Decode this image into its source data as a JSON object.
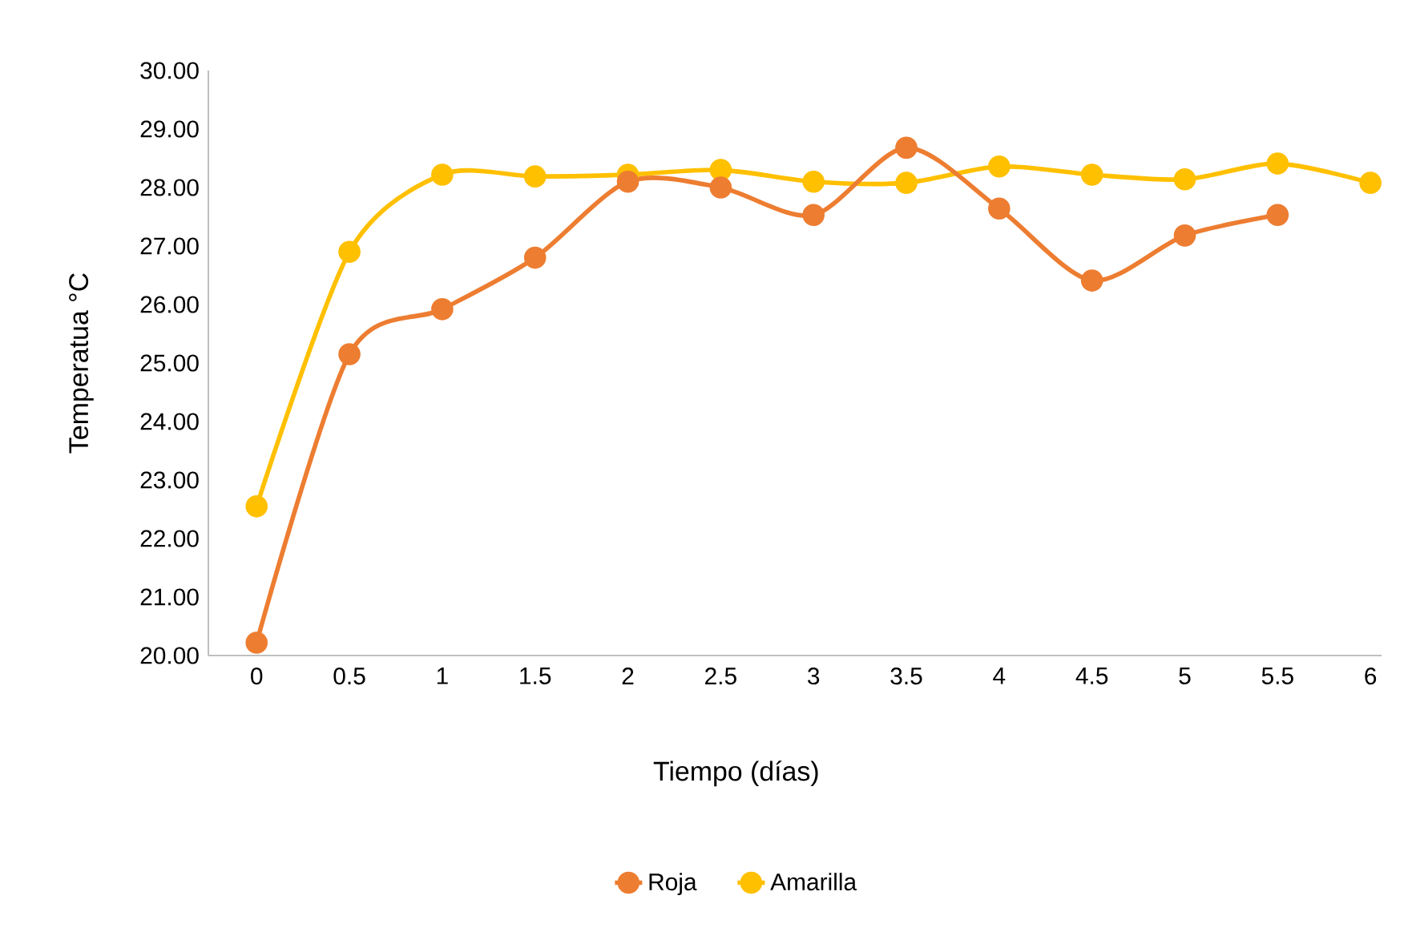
{
  "chart_data": {
    "type": "line",
    "xlabel": "Tiempo (días)",
    "ylabel": "Temperatua °C",
    "categories": [
      "0",
      "0.5",
      "1",
      "1.5",
      "2",
      "2.5",
      "3",
      "3.5",
      "4",
      "4.5",
      "5",
      "5.5",
      "6"
    ],
    "series": [
      {
        "name": "Roja",
        "color": "#ed7d31",
        "values": [
          20.22,
          25.15,
          25.92,
          26.8,
          28.1,
          28.0,
          27.53,
          28.68,
          27.64,
          26.41,
          27.18,
          27.53,
          null
        ]
      },
      {
        "name": "Amarilla",
        "color": "#ffc000",
        "values": [
          22.55,
          26.9,
          28.22,
          28.19,
          28.22,
          28.3,
          28.1,
          28.08,
          28.36,
          28.22,
          28.14,
          28.41,
          28.08
        ]
      }
    ],
    "ylim": [
      20,
      30
    ],
    "yticks": [
      {
        "value": 20,
        "label": "20.00"
      },
      {
        "value": 21,
        "label": "21.00"
      },
      {
        "value": 22,
        "label": "22.00"
      },
      {
        "value": 23,
        "label": "23.00"
      },
      {
        "value": 24,
        "label": "24.00"
      },
      {
        "value": 25,
        "label": "25.00"
      },
      {
        "value": 26,
        "label": "26.00"
      },
      {
        "value": 27,
        "label": "27.00"
      },
      {
        "value": 28,
        "label": "28.00"
      },
      {
        "value": 29,
        "label": "29.00"
      },
      {
        "value": 30,
        "label": "30.00"
      }
    ],
    "legend": "bottom",
    "marker": "circle",
    "line_style": "solid"
  }
}
